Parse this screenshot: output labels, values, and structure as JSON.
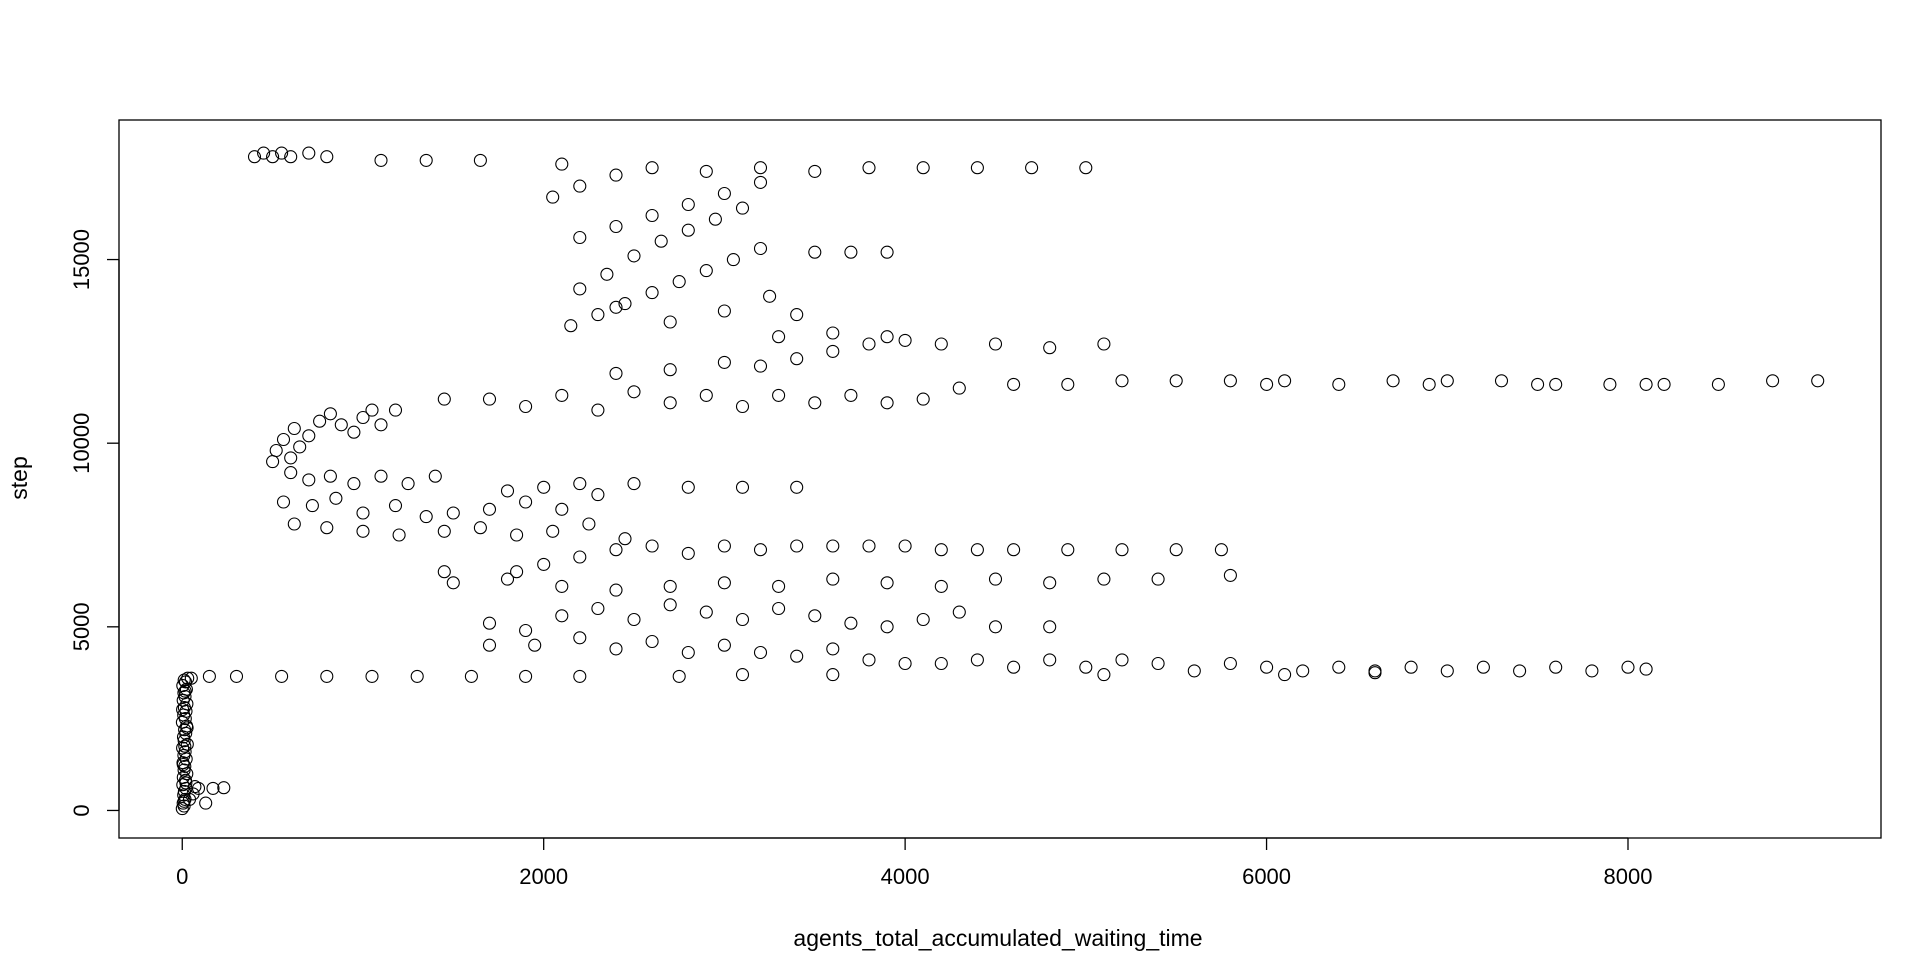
{
  "chart_data": {
    "type": "scatter",
    "title": "",
    "xlabel": "agents_total_accumulated_waiting_time",
    "ylabel": "step",
    "xlim": [
      -350,
      9400
    ],
    "ylim": [
      -750,
      18800
    ],
    "x_ticks": [
      0,
      2000,
      4000,
      6000,
      8000
    ],
    "x_tick_labels": [
      "0",
      "2000",
      "4000",
      "6000",
      "8000"
    ],
    "y_ticks": [
      0,
      5000,
      10000,
      15000
    ],
    "y_tick_labels": [
      "0",
      "5000",
      "10000",
      "15000"
    ],
    "grid": false,
    "legend": "none",
    "marker": "open-circle",
    "marker_color": "#000000",
    "points_note_free": true,
    "series": [
      {
        "values": [
          [
            0,
            50
          ],
          [
            10,
            120
          ],
          [
            5,
            200
          ],
          [
            15,
            300
          ],
          [
            8,
            420
          ],
          [
            12,
            520
          ],
          [
            20,
            600
          ],
          [
            3,
            700
          ],
          [
            18,
            820
          ],
          [
            6,
            900
          ],
          [
            25,
            1000
          ],
          [
            10,
            1100
          ],
          [
            14,
            1200
          ],
          [
            4,
            1300
          ],
          [
            22,
            1400
          ],
          [
            9,
            1500
          ],
          [
            16,
            1600
          ],
          [
            2,
            1700
          ],
          [
            28,
            1800
          ],
          [
            11,
            1900
          ],
          [
            7,
            2000
          ],
          [
            19,
            2100
          ],
          [
            13,
            2200
          ],
          [
            24,
            2300
          ],
          [
            1,
            2400
          ],
          [
            17,
            2500
          ],
          [
            8,
            2600
          ],
          [
            21,
            2700
          ],
          [
            12,
            2800
          ],
          [
            26,
            2900
          ],
          [
            5,
            3000
          ],
          [
            15,
            3100
          ],
          [
            9,
            3200
          ],
          [
            23,
            3300
          ],
          [
            3,
            3400
          ],
          [
            18,
            3500
          ],
          [
            30,
            3600
          ],
          [
            10,
            250
          ],
          [
            20,
            750
          ],
          [
            6,
            1250
          ],
          [
            14,
            1750
          ],
          [
            27,
            2250
          ],
          [
            2,
            2750
          ],
          [
            16,
            3250
          ],
          [
            11,
            3550
          ],
          [
            60,
            450
          ],
          [
            90,
            600
          ],
          [
            130,
            200
          ],
          [
            170,
            600
          ],
          [
            230,
            620
          ],
          [
            40,
            300
          ],
          [
            70,
            650
          ],
          [
            50,
            3600
          ],
          [
            150,
            3650
          ],
          [
            300,
            3650
          ],
          [
            550,
            3650
          ],
          [
            800,
            3650
          ],
          [
            1050,
            3650
          ],
          [
            1300,
            3650
          ],
          [
            1600,
            3650
          ],
          [
            1900,
            3650
          ],
          [
            2200,
            3650
          ],
          [
            500,
            9500
          ],
          [
            520,
            9800
          ],
          [
            560,
            10100
          ],
          [
            600,
            9600
          ],
          [
            620,
            10400
          ],
          [
            650,
            9900
          ],
          [
            700,
            10200
          ],
          [
            760,
            10600
          ],
          [
            820,
            10800
          ],
          [
            880,
            10500
          ],
          [
            950,
            10300
          ],
          [
            1000,
            10700
          ],
          [
            1050,
            10900
          ],
          [
            1100,
            10500
          ],
          [
            1180,
            10900
          ],
          [
            600,
            9200
          ],
          [
            700,
            9000
          ],
          [
            820,
            9100
          ],
          [
            950,
            8900
          ],
          [
            1100,
            9100
          ],
          [
            1250,
            8900
          ],
          [
            1400,
            9100
          ],
          [
            560,
            8400
          ],
          [
            720,
            8300
          ],
          [
            850,
            8500
          ],
          [
            1000,
            8100
          ],
          [
            1180,
            8300
          ],
          [
            1350,
            8000
          ],
          [
            1500,
            8100
          ],
          [
            620,
            7800
          ],
          [
            800,
            7700
          ],
          [
            1000,
            7600
          ],
          [
            1200,
            7500
          ],
          [
            1450,
            7600
          ],
          [
            1650,
            7700
          ],
          [
            1850,
            7500
          ],
          [
            2050,
            7600
          ],
          [
            2250,
            7800
          ],
          [
            2450,
            7400
          ],
          [
            1700,
            8200
          ],
          [
            1900,
            8400
          ],
          [
            2100,
            8200
          ],
          [
            2300,
            8600
          ],
          [
            1800,
            8700
          ],
          [
            2000,
            8800
          ],
          [
            2200,
            8900
          ],
          [
            2500,
            8900
          ],
          [
            2800,
            8800
          ],
          [
            3100,
            8800
          ],
          [
            3400,
            8800
          ],
          [
            1450,
            11200
          ],
          [
            1700,
            11200
          ],
          [
            1900,
            11000
          ],
          [
            2100,
            11300
          ],
          [
            2300,
            10900
          ],
          [
            2500,
            11400
          ],
          [
            2700,
            11100
          ],
          [
            2900,
            11300
          ],
          [
            3100,
            11000
          ],
          [
            3300,
            11300
          ],
          [
            3500,
            11100
          ],
          [
            3700,
            11300
          ],
          [
            3900,
            11100
          ],
          [
            4100,
            11200
          ],
          [
            4300,
            11500
          ],
          [
            4600,
            11600
          ],
          [
            4900,
            11600
          ],
          [
            5200,
            11700
          ],
          [
            5500,
            11700
          ],
          [
            5800,
            11700
          ],
          [
            6100,
            11700
          ],
          [
            6400,
            11600
          ],
          [
            6700,
            11700
          ],
          [
            7000,
            11700
          ],
          [
            7300,
            11700
          ],
          [
            7600,
            11600
          ],
          [
            7900,
            11600
          ],
          [
            8200,
            11600
          ],
          [
            8500,
            11600
          ],
          [
            8800,
            11700
          ],
          [
            9050,
            11700
          ],
          [
            6000,
            11600
          ],
          [
            6900,
            11600
          ],
          [
            7500,
            11600
          ],
          [
            8100,
            11600
          ],
          [
            2400,
            11900
          ],
          [
            2700,
            12000
          ],
          [
            3000,
            12200
          ],
          [
            3200,
            12100
          ],
          [
            3400,
            12300
          ],
          [
            3600,
            12500
          ],
          [
            3800,
            12700
          ],
          [
            4000,
            12800
          ],
          [
            4200,
            12700
          ],
          [
            4500,
            12700
          ],
          [
            4800,
            12600
          ],
          [
            5100,
            12700
          ],
          [
            3300,
            12900
          ],
          [
            3600,
            13000
          ],
          [
            3900,
            12900
          ],
          [
            2150,
            13200
          ],
          [
            2300,
            13500
          ],
          [
            2450,
            13800
          ],
          [
            2600,
            14100
          ],
          [
            2750,
            14400
          ],
          [
            2900,
            14700
          ],
          [
            3050,
            15000
          ],
          [
            3200,
            15300
          ],
          [
            2200,
            15600
          ],
          [
            2400,
            15900
          ],
          [
            2600,
            16200
          ],
          [
            2800,
            16500
          ],
          [
            3000,
            16800
          ],
          [
            3200,
            17100
          ],
          [
            2350,
            14600
          ],
          [
            2500,
            15100
          ],
          [
            2650,
            15500
          ],
          [
            2800,
            15800
          ],
          [
            2950,
            16100
          ],
          [
            3100,
            16400
          ],
          [
            2200,
            14200
          ],
          [
            2400,
            13700
          ],
          [
            2700,
            13300
          ],
          [
            3000,
            13600
          ],
          [
            3250,
            14000
          ],
          [
            3400,
            13500
          ],
          [
            3500,
            15200
          ],
          [
            3700,
            15200
          ],
          [
            3900,
            15200
          ],
          [
            2050,
            16700
          ],
          [
            2200,
            17000
          ],
          [
            2400,
            17300
          ],
          [
            2600,
            17500
          ],
          [
            2900,
            17400
          ],
          [
            3200,
            17500
          ],
          [
            3500,
            17400
          ],
          [
            3800,
            17500
          ],
          [
            4100,
            17500
          ],
          [
            4400,
            17500
          ],
          [
            4700,
            17500
          ],
          [
            5000,
            17500
          ],
          [
            400,
            17800
          ],
          [
            450,
            17900
          ],
          [
            500,
            17800
          ],
          [
            550,
            17900
          ],
          [
            600,
            17800
          ],
          [
            700,
            17900
          ],
          [
            800,
            17800
          ],
          [
            1100,
            17700
          ],
          [
            1350,
            17700
          ],
          [
            1650,
            17700
          ],
          [
            2100,
            17600
          ],
          [
            1850,
            6500
          ],
          [
            2000,
            6700
          ],
          [
            2200,
            6900
          ],
          [
            2400,
            7100
          ],
          [
            2600,
            7200
          ],
          [
            2800,
            7000
          ],
          [
            3000,
            7200
          ],
          [
            3200,
            7100
          ],
          [
            3400,
            7200
          ],
          [
            3600,
            7200
          ],
          [
            3800,
            7200
          ],
          [
            4000,
            7200
          ],
          [
            4200,
            7100
          ],
          [
            4400,
            7100
          ],
          [
            4600,
            7100
          ],
          [
            4900,
            7100
          ],
          [
            5200,
            7100
          ],
          [
            5500,
            7100
          ],
          [
            5750,
            7100
          ],
          [
            5800,
            6400
          ],
          [
            5400,
            6300
          ],
          [
            5100,
            6300
          ],
          [
            4800,
            6200
          ],
          [
            4500,
            6300
          ],
          [
            4200,
            6100
          ],
          [
            3900,
            6200
          ],
          [
            3600,
            6300
          ],
          [
            3300,
            6100
          ],
          [
            3000,
            6200
          ],
          [
            2700,
            6100
          ],
          [
            2400,
            6000
          ],
          [
            2100,
            6100
          ],
          [
            1800,
            6300
          ],
          [
            1500,
            6200
          ],
          [
            1450,
            6500
          ],
          [
            1700,
            5100
          ],
          [
            1900,
            4900
          ],
          [
            2100,
            5300
          ],
          [
            2300,
            5500
          ],
          [
            2500,
            5200
          ],
          [
            2700,
            5600
          ],
          [
            2900,
            5400
          ],
          [
            3100,
            5200
          ],
          [
            3300,
            5500
          ],
          [
            3500,
            5300
          ],
          [
            3700,
            5100
          ],
          [
            3900,
            5000
          ],
          [
            4100,
            5200
          ],
          [
            4300,
            5400
          ],
          [
            4500,
            5000
          ],
          [
            4800,
            5000
          ],
          [
            1700,
            4500
          ],
          [
            1950,
            4500
          ],
          [
            2200,
            4700
          ],
          [
            2400,
            4400
          ],
          [
            2600,
            4600
          ],
          [
            2800,
            4300
          ],
          [
            3000,
            4500
          ],
          [
            3200,
            4300
          ],
          [
            3400,
            4200
          ],
          [
            3600,
            4400
          ],
          [
            3800,
            4100
          ],
          [
            4000,
            4000
          ],
          [
            4200,
            4000
          ],
          [
            4400,
            4100
          ],
          [
            4600,
            3900
          ],
          [
            4800,
            4100
          ],
          [
            5000,
            3900
          ],
          [
            5200,
            4100
          ],
          [
            5400,
            4000
          ],
          [
            5600,
            3800
          ],
          [
            5800,
            4000
          ],
          [
            6000,
            3900
          ],
          [
            6200,
            3800
          ],
          [
            6400,
            3900
          ],
          [
            6600,
            3800
          ],
          [
            6800,
            3900
          ],
          [
            7000,
            3800
          ],
          [
            7200,
            3900
          ],
          [
            7400,
            3800
          ],
          [
            7600,
            3900
          ],
          [
            7800,
            3800
          ],
          [
            8000,
            3900
          ],
          [
            8100,
            3850
          ],
          [
            6100,
            3700
          ],
          [
            6600,
            3750
          ],
          [
            5100,
            3700
          ],
          [
            3600,
            3700
          ],
          [
            3100,
            3700
          ],
          [
            2750,
            3650
          ]
        ]
      }
    ]
  }
}
